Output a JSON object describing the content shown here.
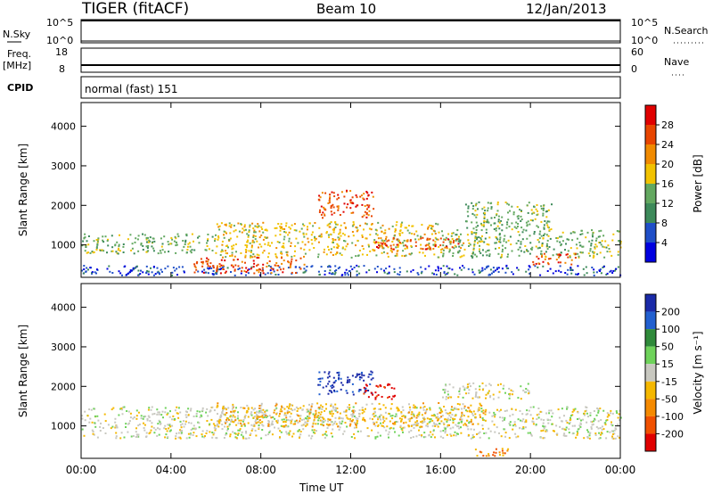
{
  "header": {
    "radar": "TIGER (fitACF)",
    "beam": "Beam 10",
    "date": "12/Jan/2013"
  },
  "aux_panels": {
    "nsky_label": "N.Sky",
    "nsky_ticks": [
      "10^5",
      "10^0"
    ],
    "nsearch_label": "N.Search",
    "nsearch_ticks": [
      "10^5",
      "10^0"
    ],
    "freq_label": "Freq.",
    "freq_unit": "[MHz]",
    "freq_ticks": [
      "18",
      "8"
    ],
    "nave_label": "Nave",
    "nave_ticks": [
      "60",
      "0"
    ],
    "cpid_label": "CPID",
    "cpid_text": "normal (fast) 151"
  },
  "colors": {
    "power": [
      "#0000e0",
      "#1f4fc8",
      "#3d8a5a",
      "#63a860",
      "#f2c200",
      "#f08a00",
      "#e84500",
      "#e00000"
    ],
    "velocity": [
      "#1a2aa8",
      "#2260d0",
      "#2f8a3a",
      "#6ed25a",
      "#c8c8c0",
      "#f5b800",
      "#f58a00",
      "#f05000",
      "#e00000"
    ]
  },
  "chart_data": [
    {
      "type": "heatmap",
      "panel": "power",
      "ylabel": "Slant Range [km]",
      "xlabel": "Time UT",
      "x_ticks": [
        "00:00",
        "04:00",
        "08:00",
        "12:00",
        "16:00",
        "20:00",
        "00:00"
      ],
      "xlim_hours": [
        0,
        24
      ],
      "y_ticks": [
        1000,
        2000,
        3000,
        4000
      ],
      "ylim": [
        180,
        4600
      ],
      "colorbar_label": "Power [dB]",
      "colorbar_ticks": [
        4,
        8,
        12,
        16,
        20,
        24,
        28
      ],
      "bands": [
        {
          "t0": 0,
          "t1": 24,
          "r0": 250,
          "r1": 500,
          "level": 1
        },
        {
          "t0": 0,
          "t1": 6,
          "r0": 800,
          "r1": 1300,
          "level": 3
        },
        {
          "t0": 6,
          "t1": 16,
          "r0": 700,
          "r1": 1600,
          "level": 4
        },
        {
          "t0": 16,
          "t1": 24,
          "r0": 700,
          "r1": 1400,
          "level": 3
        },
        {
          "t0": 5,
          "t1": 10,
          "r0": 300,
          "r1": 700,
          "level": 6
        },
        {
          "t0": 10.5,
          "t1": 13,
          "r0": 1700,
          "r1": 2400,
          "level": 6
        },
        {
          "t0": 13,
          "t1": 17,
          "r0": 900,
          "r1": 1200,
          "level": 6
        },
        {
          "t0": 17,
          "t1": 21,
          "r0": 1400,
          "r1": 2100,
          "level": 3
        },
        {
          "t0": 20,
          "t1": 22,
          "r0": 500,
          "r1": 800,
          "level": 6
        }
      ]
    },
    {
      "type": "heatmap",
      "panel": "velocity",
      "ylabel": "Slant Range [km]",
      "xlabel": "Time UT",
      "x_ticks": [
        "00:00",
        "04:00",
        "08:00",
        "12:00",
        "16:00",
        "20:00",
        "00:00"
      ],
      "xlim_hours": [
        0,
        24
      ],
      "y_ticks": [
        1000,
        2000,
        3000,
        4000
      ],
      "ylim": [
        180,
        4600
      ],
      "colorbar_label": "Velocity [m s⁻¹]",
      "colorbar_ticks": [
        200,
        100,
        50,
        15,
        -15,
        -50,
        -100,
        -200
      ],
      "bands": [
        {
          "t0": 0,
          "t1": 24,
          "r0": 700,
          "r1": 1500,
          "level": 4
        },
        {
          "t0": 6,
          "t1": 18,
          "r0": 1000,
          "r1": 1600,
          "level": 5
        },
        {
          "t0": 10.5,
          "t1": 13,
          "r0": 1800,
          "r1": 2400,
          "level": 0
        },
        {
          "t0": 12.5,
          "t1": 14,
          "r0": 1700,
          "r1": 2100,
          "level": 8
        },
        {
          "t0": 16,
          "t1": 20,
          "r0": 1700,
          "r1": 2100,
          "level": 4
        },
        {
          "t0": 17,
          "t1": 19,
          "r0": 250,
          "r1": 450,
          "level": 6
        }
      ]
    }
  ],
  "x_axis_title": "Time UT"
}
